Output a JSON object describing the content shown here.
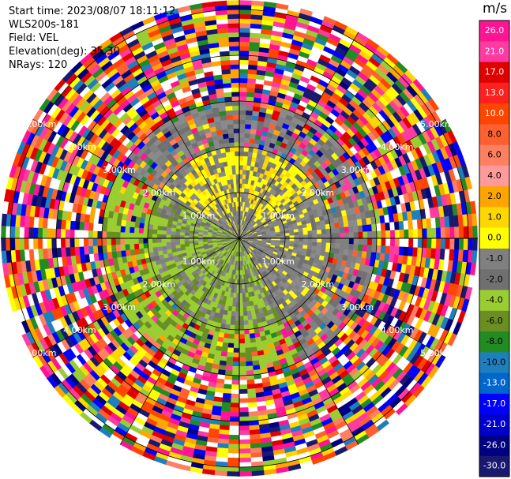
{
  "meta": {
    "start_time": "Start time: 2023/08/07 18:11:12",
    "instrument": "WLS200s-181",
    "field": "Field: VEL",
    "elevation": "Elevation(deg): 35.30",
    "nrays": "NRays: 120"
  },
  "chart_data": {
    "type": "heatmap",
    "projection": "polar (PPI scan)",
    "colorbar": {
      "title": "m/s",
      "levels": [
        "26.0",
        "21.0",
        "17.0",
        "13.0",
        "10.0",
        "8.0",
        "6.0",
        "4.0",
        "2.0",
        "1.0",
        "0.0",
        "-1.0",
        "-2.0",
        "-4.0",
        "-6.0",
        "-8.0",
        "-10.0",
        "-13.0",
        "-17.0",
        "-21.0",
        "-26.0",
        "-30.0"
      ],
      "colors": [
        "#ff1493",
        "#ff3aa0",
        "#e00000",
        "#ff2020",
        "#ff4500",
        "#ff6030",
        "#ff8060",
        "#ff9a9a",
        "#ffa500",
        "#ffd700",
        "#ffff00",
        "#808080",
        "#707070",
        "#9acd32",
        "#6b8e23",
        "#228b22",
        "#1e7fbf",
        "#0066cc",
        "#0000ff",
        "#0000cc",
        "#000080",
        "#191970"
      ]
    },
    "range_rings_km": [
      "1.00km",
      "2.00km",
      "3.00km",
      "4.00km",
      "5.00km"
    ],
    "ring_labels": [
      {
        "text": "1.00km",
        "ring": 1,
        "angle": 150
      },
      {
        "text": "1.00km",
        "ring": 1,
        "angle": 30
      },
      {
        "text": "1.00km",
        "ring": 1,
        "angle": 210
      },
      {
        "text": "1.00km",
        "ring": 1,
        "angle": 330
      },
      {
        "text": "2.00km",
        "ring": 2,
        "angle": 150
      },
      {
        "text": "2.00km",
        "ring": 2,
        "angle": 30
      },
      {
        "text": "2.00km",
        "ring": 2,
        "angle": 210
      },
      {
        "text": "2.00km",
        "ring": 2,
        "angle": 330
      },
      {
        "text": "3.00km",
        "ring": 3,
        "angle": 150
      },
      {
        "text": "3.00km",
        "ring": 3,
        "angle": 30
      },
      {
        "text": "3.00km",
        "ring": 3,
        "angle": 210
      },
      {
        "text": "3.00km",
        "ring": 3,
        "angle": 330
      },
      {
        "text": "4.00km",
        "ring": 4,
        "angle": 150
      },
      {
        "text": "4.00km",
        "ring": 4,
        "angle": 30
      },
      {
        "text": "4.00km",
        "ring": 4,
        "angle": 210
      },
      {
        "text": "4.00km",
        "ring": 4,
        "angle": 330
      },
      {
        "text": "5.00km",
        "ring": 5,
        "angle": 150
      },
      {
        "text": "5.00km",
        "ring": 5,
        "angle": 30
      },
      {
        "text": "5.00km",
        "ring": 5,
        "angle": 210
      },
      {
        "text": "5.00km",
        "ring": 5,
        "angle": 330
      }
    ],
    "nrays": 120,
    "max_range_km": 5.2
  }
}
